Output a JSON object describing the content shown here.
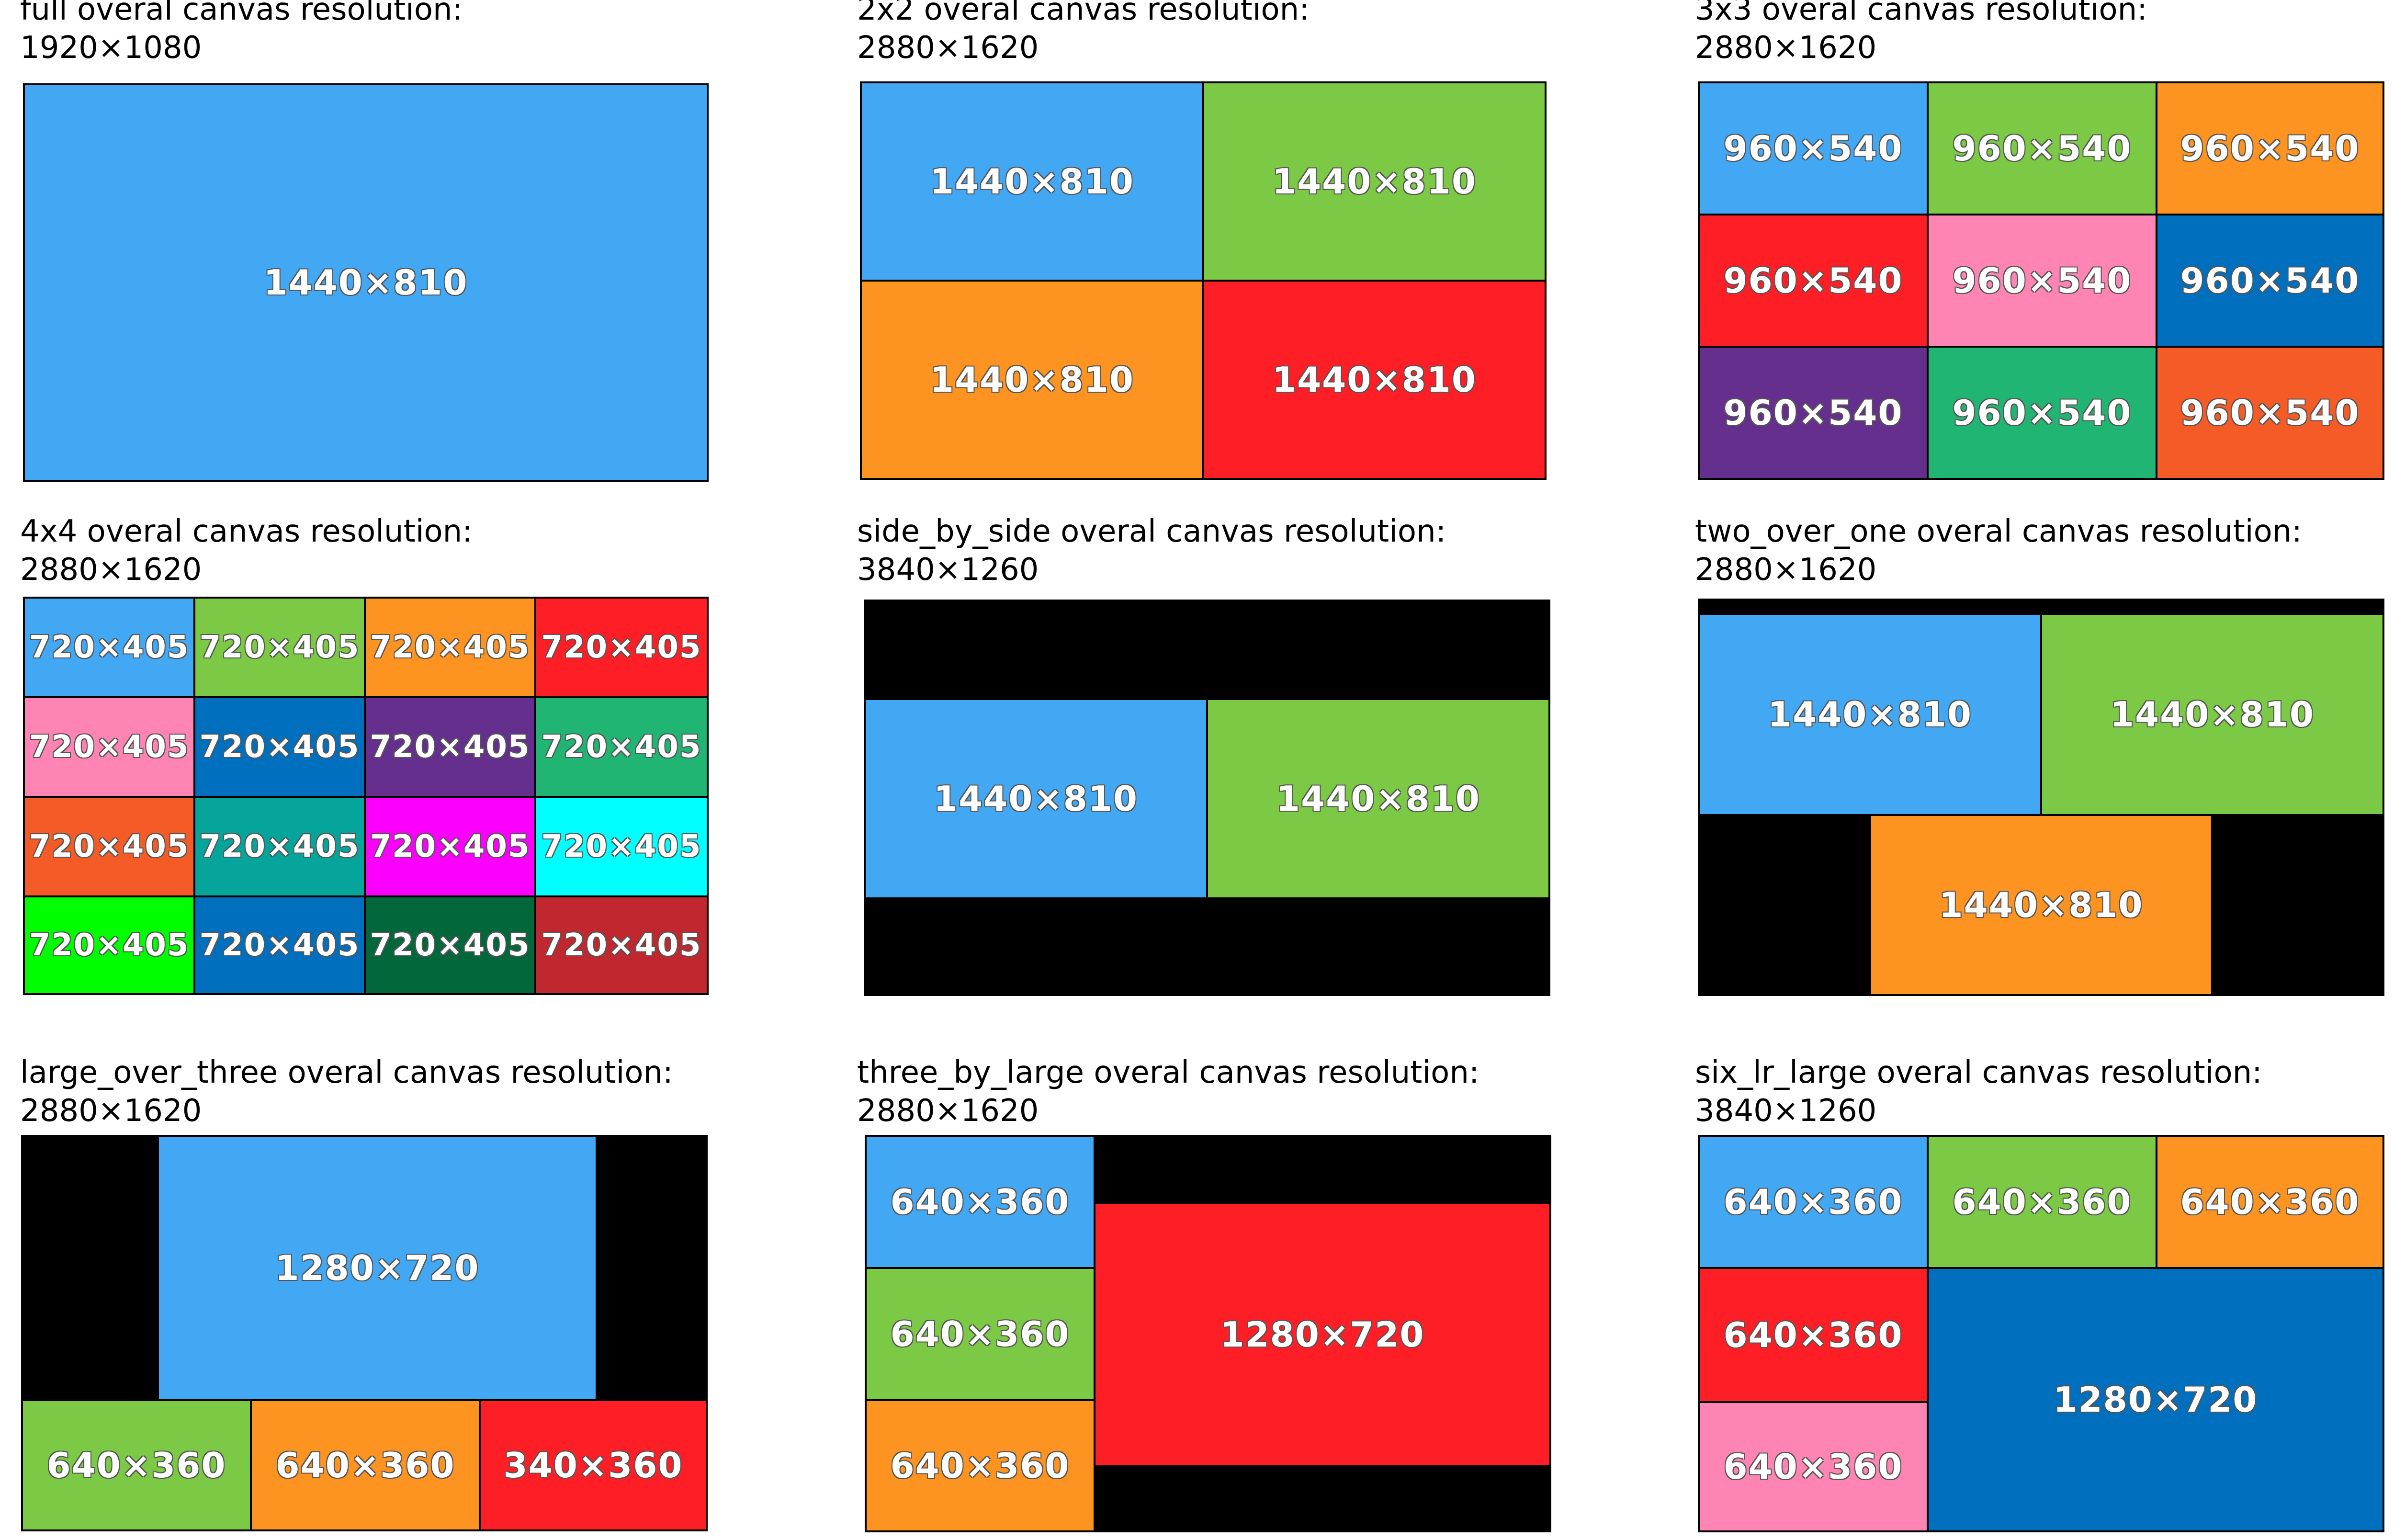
{
  "colors": {
    "blue": "#42a8f4",
    "green": "#7bc944",
    "orange": "#fd9320",
    "red": "#fe1e26",
    "pink": "#fe84b4",
    "darkblue": "#006fbe",
    "purple": "#652f8e",
    "teal_green": "#20b573",
    "dark_orange": "#f45b27",
    "teal": "#05a59b",
    "magenta": "#fc00fd",
    "cyan": "#00ffff",
    "lime": "#00fe00",
    "dark_green": "#02683b",
    "dark_red": "#c0272e",
    "black": "#000000"
  },
  "panels": {
    "full": {
      "caption": "full overal canvas resolution:",
      "resolution": "1920×1080",
      "tiles": [
        "1440×810"
      ]
    },
    "grid2": {
      "caption": "2x2 overal canvas resolution:",
      "resolution": "2880×1620",
      "tiles": [
        "1440×810",
        "1440×810",
        "1440×810",
        "1440×810"
      ]
    },
    "grid3": {
      "caption": "3x3 overal canvas resolution:",
      "resolution": "2880×1620",
      "tiles": [
        "960×540",
        "960×540",
        "960×540",
        "960×540",
        "960×540",
        "960×540",
        "960×540",
        "960×540",
        "960×540"
      ]
    },
    "grid4": {
      "caption": "4x4 overal canvas resolution:",
      "resolution": "2880×1620",
      "tiles": [
        "720×405",
        "720×405",
        "720×405",
        "720×405",
        "720×405",
        "720×405",
        "720×405",
        "720×405",
        "720×405",
        "720×405",
        "720×405",
        "720×405",
        "720×405",
        "720×405",
        "720×405",
        "720×405"
      ]
    },
    "side_by_side": {
      "caption": "side_by_side overal canvas resolution:",
      "resolution": "3840×1260",
      "tiles": [
        "1440×810",
        "1440×810"
      ]
    },
    "two_over_one": {
      "caption": "two_over_one overal canvas resolution:",
      "resolution": "2880×1620",
      "tiles": [
        "1440×810",
        "1440×810",
        "1440×810"
      ]
    },
    "large_over_three": {
      "caption": "large_over_three overal canvas resolution:",
      "resolution": "2880×1620",
      "tiles": [
        "1280×720",
        "640×360",
        "640×360",
        "340×360"
      ]
    },
    "three_by_large": {
      "caption": "three_by_large overal canvas resolution:",
      "resolution": "2880×1620",
      "tiles": [
        "640×360",
        "640×360",
        "640×360",
        "1280×720"
      ]
    },
    "six_lr_large": {
      "caption": "six_lr_large overal canvas resolution:",
      "resolution": "3840×1260",
      "tiles": [
        "640×360",
        "640×360",
        "640×360",
        "640×360",
        "640×360",
        "1280×720"
      ]
    }
  }
}
